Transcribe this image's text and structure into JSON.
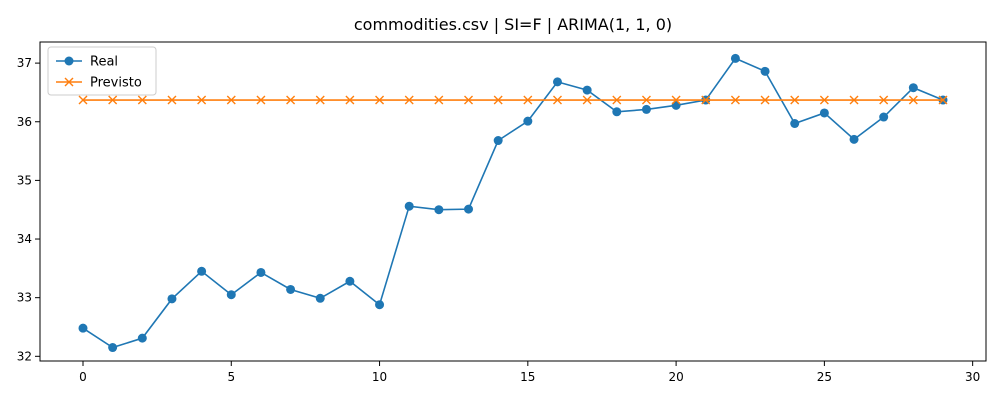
{
  "chart_data": {
    "type": "line",
    "title": "commodities.csv | SI=F | ARIMA(1, 1, 0)",
    "xlabel": "",
    "ylabel": "",
    "xlim": [
      -1.45,
      30.45
    ],
    "ylim": [
      31.92,
      37.36
    ],
    "xticks": [
      0,
      5,
      10,
      15,
      20,
      25,
      30
    ],
    "yticks": [
      32,
      33,
      34,
      35,
      36,
      37
    ],
    "grid": false,
    "legend": "top-left",
    "x": [
      0,
      1,
      2,
      3,
      4,
      5,
      6,
      7,
      8,
      9,
      10,
      11,
      12,
      13,
      14,
      15,
      16,
      17,
      18,
      19,
      20,
      21,
      22,
      23,
      24,
      25,
      26,
      27,
      28,
      29
    ],
    "series": [
      {
        "name": "Real",
        "color": "#1f77b4",
        "marker": "circle",
        "values": [
          32.48,
          32.15,
          32.31,
          32.98,
          33.45,
          33.05,
          33.43,
          33.14,
          32.99,
          33.28,
          32.88,
          34.56,
          34.5,
          34.51,
          35.68,
          36.01,
          36.68,
          36.54,
          36.17,
          36.21,
          36.28,
          36.37,
          37.08,
          36.86,
          35.97,
          36.15,
          35.7,
          36.08,
          36.58,
          36.37
        ]
      },
      {
        "name": "Previsto",
        "color": "#ff7f0e",
        "marker": "x",
        "values": [
          36.37,
          36.37,
          36.37,
          36.37,
          36.37,
          36.37,
          36.37,
          36.37,
          36.37,
          36.37,
          36.37,
          36.37,
          36.37,
          36.37,
          36.37,
          36.37,
          36.37,
          36.37,
          36.37,
          36.37,
          36.37,
          36.37,
          36.37,
          36.37,
          36.37,
          36.37,
          36.37,
          36.37,
          36.37,
          36.37
        ]
      }
    ]
  }
}
